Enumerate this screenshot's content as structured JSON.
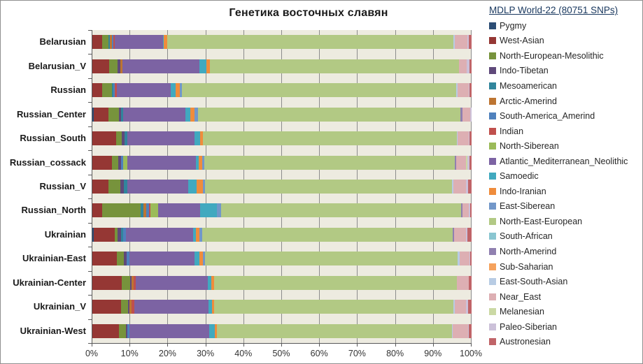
{
  "title": "Генетика восточных славян",
  "legend": {
    "title": "MDLP World-22 (80751 SNPs)",
    "position": "right"
  },
  "axis": {
    "x_tick_labels": [
      "0%",
      "10%",
      "20%",
      "30%",
      "40%",
      "50%",
      "60%",
      "70%",
      "80%",
      "90%",
      "100%"
    ],
    "xlim": [
      0,
      100
    ]
  },
  "colors": {
    "plot_background": "#edebe0",
    "gridline": "#8c8c8c",
    "axis_line": "#595959",
    "title_text": "#1a1a1a",
    "legend_title_text": "#17365d"
  },
  "chart_data": {
    "type": "bar",
    "subtype": "stacked-horizontal",
    "title": "Генетика восточных славян",
    "legend_title": "MDLP World-22 (80751 SNPs)",
    "legend_position": "right",
    "grid": true,
    "xlim": [
      0,
      100
    ],
    "x_tick_labels": [
      "0%",
      "10%",
      "20%",
      "30%",
      "40%",
      "50%",
      "60%",
      "70%",
      "80%",
      "90%",
      "100%"
    ],
    "units": "percent",
    "categories": [
      "Belarusian",
      "Belarusian_V",
      "Russian",
      "Russian_Center",
      "Russian_South",
      "Russian_cossack",
      "Russian_V",
      "Russian_North",
      "Ukrainian",
      "Ukrainian-East",
      "Ukrainian-Center",
      "Ukrainian_V",
      "Ukrainian-West"
    ],
    "series": [
      {
        "name": "Pygmy",
        "color": "#2c4d75",
        "values": [
          0,
          0,
          0,
          0.4,
          0,
          0,
          0,
          0,
          0.4,
          0,
          0,
          0,
          0
        ]
      },
      {
        "name": "West-Asian",
        "color": "#953734",
        "values": [
          2.6,
          4.4,
          2.6,
          3.9,
          6.3,
          5.2,
          4.3,
          2.6,
          5.5,
          6.5,
          7.7,
          7.6,
          7.0
        ]
      },
      {
        "name": "North-European-Mesolithic",
        "color": "#77933c",
        "values": [
          1.7,
          2.3,
          2.6,
          2.8,
          1.4,
          1.6,
          3.1,
          10.1,
          0.8,
          1.8,
          2.2,
          1.8,
          1.8
        ]
      },
      {
        "name": "Indo-Tibetan",
        "color": "#5f497a",
        "values": [
          0,
          0.6,
          0,
          0.5,
          0.7,
          0.8,
          0.9,
          0,
          0.9,
          0.8,
          0.4,
          0.3,
          0.4
        ]
      },
      {
        "name": "Mesoamerican",
        "color": "#31859c",
        "values": [
          0.3,
          0,
          0.4,
          0.6,
          0.8,
          0,
          0.9,
          0.8,
          0.6,
          0,
          0,
          0,
          0
        ]
      },
      {
        "name": "Arctic-Amerind",
        "color": "#bd7532",
        "values": [
          0.5,
          0.6,
          0,
          0,
          0,
          0,
          0,
          0.8,
          0,
          0,
          0.6,
          0.7,
          0
        ]
      },
      {
        "name": "South-America_Amerind",
        "color": "#4f81bd",
        "values": [
          0.4,
          0,
          0.4,
          0,
          0,
          0.6,
          0,
          0.6,
          0.6,
          0.7,
          0,
          0,
          0.5
        ]
      },
      {
        "name": "Indian",
        "color": "#c0504d",
        "values": [
          0.4,
          0,
          0.4,
          0,
          0,
          0,
          0,
          0.4,
          0,
          0,
          0.5,
          0.7,
          0
        ]
      },
      {
        "name": "North-Siberean",
        "color": "#9bbb59",
        "values": [
          0,
          0,
          0,
          0,
          0,
          1.0,
          0,
          2.0,
          0,
          0,
          0,
          0,
          0
        ]
      },
      {
        "name": "Atlantic_Mediterranean_Neolithic",
        "color": "#7c63a3",
        "values": [
          12.7,
          20.4,
          14.3,
          16.3,
          17.8,
          18.1,
          16.0,
          11.2,
          17.8,
          17.2,
          19.0,
          19.5,
          21.1
        ]
      },
      {
        "name": "Samoedic",
        "color": "#41a9bf",
        "values": [
          0.3,
          1.8,
          1.2,
          1.4,
          1.4,
          0.7,
          2.3,
          4.4,
          0.7,
          1.2,
          0.9,
          1.0,
          1.5
        ]
      },
      {
        "name": "Indo-Iranian",
        "color": "#ef8c3c",
        "values": [
          0.9,
          0.9,
          1.1,
          1.1,
          0.7,
          0.9,
          1.7,
          0,
          1.0,
          0.9,
          0.9,
          0.6,
          0.5
        ]
      },
      {
        "name": "East-Siberean",
        "color": "#7297c9",
        "values": [
          0,
          0,
          0.6,
          0.9,
          0,
          0.6,
          0.6,
          1.0,
          0.6,
          0.6,
          0,
          0,
          0
        ]
      },
      {
        "name": "North-East-European",
        "color": "#b2c984",
        "values": [
          75.4,
          65.6,
          72.4,
          69.2,
          67.0,
          66.0,
          65.0,
          63.3,
          66.1,
          66.7,
          63.9,
          63.0,
          62.0
        ]
      },
      {
        "name": "South-African",
        "color": "#8ac6d1",
        "values": [
          0,
          0,
          0,
          0,
          0,
          0,
          0,
          0,
          0,
          0,
          0,
          0,
          0
        ]
      },
      {
        "name": "North-Amerind",
        "color": "#9080b0",
        "values": [
          0,
          0,
          0,
          0.6,
          0,
          0.4,
          0,
          0.5,
          0.4,
          0,
          0,
          0,
          0
        ]
      },
      {
        "name": "Sub-Saharian",
        "color": "#f5a25d",
        "values": [
          0,
          0,
          0,
          0,
          0,
          0,
          0,
          0,
          0,
          0,
          0,
          0,
          0
        ]
      },
      {
        "name": "East-South-Asian",
        "color": "#b8cce4",
        "values": [
          0.4,
          0,
          0.4,
          0,
          0.3,
          0,
          0.4,
          0,
          0,
          0.4,
          0,
          0.4,
          0.3
        ]
      },
      {
        "name": "Near_East",
        "color": "#ddafb3",
        "values": [
          3.4,
          2.2,
          2.8,
          2.0,
          2.8,
          2.6,
          3.4,
          1.5,
          3.2,
          2.6,
          3.2,
          3.0,
          3.9
        ]
      },
      {
        "name": "Melanesian",
        "color": "#cbd9a4",
        "values": [
          0,
          0,
          0,
          0,
          0,
          0.4,
          0,
          0,
          0,
          0,
          0,
          0,
          0
        ]
      },
      {
        "name": "Paleo-Siberian",
        "color": "#ccc1d9",
        "values": [
          0.2,
          0.6,
          0.3,
          0.3,
          0.3,
          0.5,
          0.4,
          0.4,
          0.4,
          0.2,
          0,
          0.5,
          0.3
        ]
      },
      {
        "name": "Austronesian",
        "color": "#c06468",
        "values": [
          0.8,
          0.6,
          0.5,
          0,
          0.5,
          0.6,
          1.0,
          0.4,
          1.0,
          0.4,
          0.7,
          0.9,
          0.7
        ]
      }
    ]
  }
}
